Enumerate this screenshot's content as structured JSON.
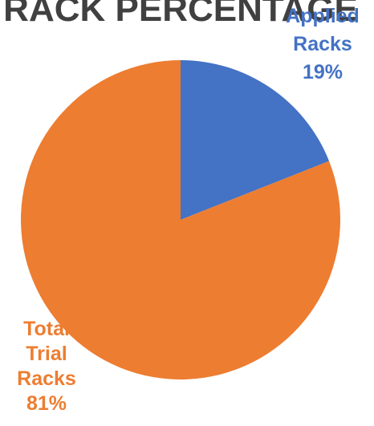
{
  "chart_data": {
    "type": "pie",
    "title": "RACK PERCENTAGE",
    "slices": [
      {
        "label": "Applied Racks",
        "label_lines": [
          "Applied",
          "Racks"
        ],
        "percent_label": "19%",
        "value": 19,
        "color": "#4472C4"
      },
      {
        "label": "Total Trial Racks",
        "label_lines": [
          "Total",
          "Trial",
          "Racks"
        ],
        "percent_label": "81%",
        "value": 81,
        "color": "#ED7D31"
      }
    ],
    "start_angle_deg": 0,
    "direction": "clockwise",
    "legend": "none",
    "data_labels": "outside"
  }
}
